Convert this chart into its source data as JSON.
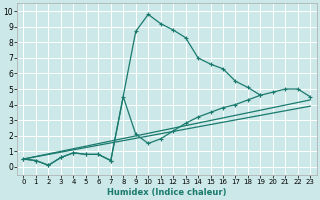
{
  "xlabel": "Humidex (Indice chaleur)",
  "xlim": [
    -0.5,
    23.5
  ],
  "ylim": [
    -0.5,
    10.5
  ],
  "xticks": [
    0,
    1,
    2,
    3,
    4,
    5,
    6,
    7,
    8,
    9,
    10,
    11,
    12,
    13,
    14,
    15,
    16,
    17,
    18,
    19,
    20,
    21,
    22,
    23
  ],
  "yticks": [
    0,
    1,
    2,
    3,
    4,
    5,
    6,
    7,
    8,
    9,
    10
  ],
  "bg_color": "#cce8e8",
  "grid_color": "#ffffff",
  "line_color": "#1a7a6e",
  "line1_x": [
    0,
    1,
    2,
    3,
    4,
    5,
    6,
    7,
    9,
    10,
    11,
    12,
    13,
    14,
    15,
    16,
    17,
    18,
    19
  ],
  "line1_y": [
    0.5,
    0.4,
    0.1,
    0.6,
    0.9,
    0.8,
    0.8,
    0.4,
    8.7,
    9.8,
    9.2,
    8.8,
    8.3,
    7.0,
    6.6,
    6.3,
    5.5,
    5.1,
    4.6
  ],
  "line2_x": [
    0,
    1,
    2,
    3,
    4,
    5,
    6,
    7,
    8,
    9,
    10,
    11,
    12,
    13,
    14,
    15,
    16,
    17,
    18,
    19,
    20,
    21,
    22,
    23
  ],
  "line2_y": [
    0.5,
    0.4,
    0.1,
    0.6,
    0.9,
    0.8,
    0.8,
    0.4,
    4.5,
    2.1,
    1.5,
    1.8,
    2.3,
    2.8,
    3.2,
    3.5,
    3.8,
    4.0,
    4.3,
    4.6,
    4.8,
    5.0,
    5.0,
    4.5
  ],
  "line3_x": [
    0,
    23
  ],
  "line3_y": [
    0.5,
    4.3
  ],
  "line4_x": [
    0,
    23
  ],
  "line4_y": [
    0.5,
    3.9
  ]
}
